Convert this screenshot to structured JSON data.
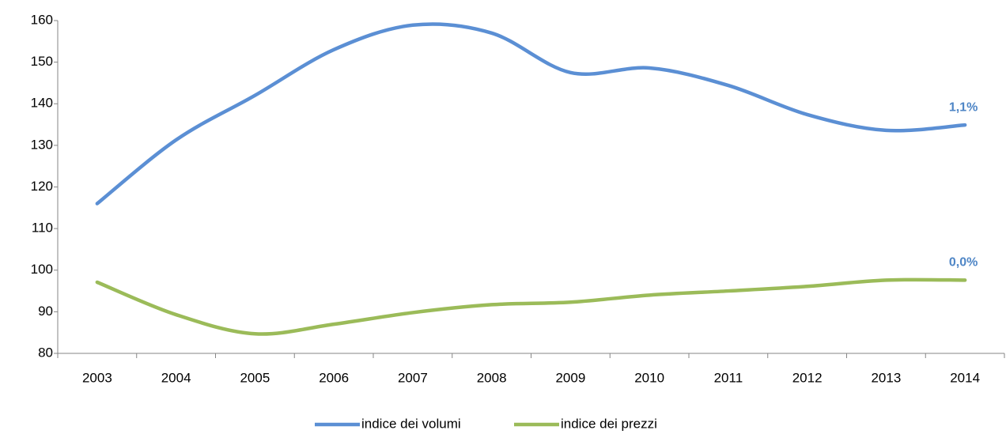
{
  "chart_data": {
    "type": "line",
    "categories": [
      "2003",
      "2004",
      "2005",
      "2006",
      "2007",
      "2008",
      "2009",
      "2010",
      "2011",
      "2012",
      "2013",
      "2014"
    ],
    "series": [
      {
        "name": "indice dei volumi",
        "color": "#5b8fd4",
        "values": [
          116,
          131.3,
          142,
          153,
          158.9,
          157,
          147.5,
          148.6,
          144.4,
          137.4,
          133.6,
          134.9
        ],
        "end_label": "1,1%"
      },
      {
        "name": "indice dei prezzi",
        "color": "#9bbb59",
        "values": [
          97.1,
          89.3,
          84.7,
          87,
          89.8,
          91.7,
          92.3,
          94,
          95,
          96.1,
          97.6,
          97.6
        ],
        "end_label": "0,0%"
      }
    ],
    "annotation_color": "#4f86c6",
    "ylim": [
      80,
      160
    ],
    "yticks": [
      80,
      90,
      100,
      110,
      120,
      130,
      140,
      150,
      160
    ],
    "legend": "bottom"
  }
}
